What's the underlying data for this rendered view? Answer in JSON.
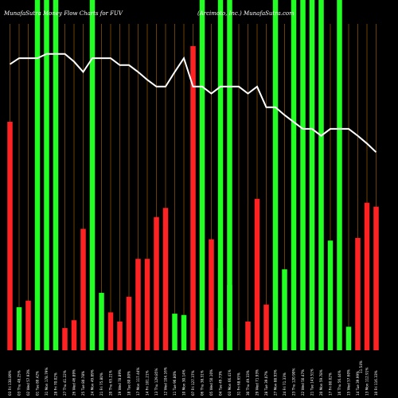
{
  "chart_data": {
    "type": "bar",
    "title_left": "MunafaSutra Money Flow Charts for FUV",
    "title_right": "(Arcimoto, Inc.) MunafaSutra.com",
    "colors": {
      "background": "#000000",
      "up_bar": "#ff2222",
      "down_bar": "#22ff22",
      "highlight": "#22ff22",
      "price_line": "#ffffff",
      "grid": "#b36b00"
    },
    "categories": [
      "03 Fri 138.89%",
      "03 Thu 48.25%",
      "02 Wed 57.93%",
      "01 Tue 80.42%",
      "31 Mon 178.79%",
      "28 Fri 70.02%",
      "27 Thu 41.22%",
      "26 Wed 46.89%",
      "25 Tue 80.78%",
      "24 Mon 49.89%",
      "21 Fri 75.80%",
      "20 Thu 65.21%",
      "19 Wed 78.89%",
      "18 Tue 80.00%",
      "17 Mon 117.44%",
      "14 Fri 101.21%",
      "13 Thu 129.85%",
      "12 Wed 104.16%",
      "11 Tue 96.80%",
      "10 Mon 30.14%",
      "07 Fri 127.37%",
      "06 Thu 38.31%",
      "05 Wed 50.10%",
      "04 Tue 49.73%",
      "03 Mon 66.41%",
      "31 Fri 68.65%",
      "30 Thu 49.33%",
      "29 Wed 71.93%",
      "28 Tue 39.07%",
      "27 Mon 88.93%",
      "24 Fri 71.33%",
      "23 Thu 120.90%",
      "22 Wed 50.47%",
      "21 Tue 143.51%",
      "20 Mon 59.78%",
      "17 Fri 80.02%",
      "16 Thu 56.44%",
      "15 Wed 57.60%",
      "14 Tue 39.99%",
      "13 Mon 112.91%",
      "10 Fri 116.33%"
    ],
    "last_label_extra": "11.54%",
    "values": [
      175,
      33,
      38,
      0,
      0,
      0,
      17,
      23,
      93,
      0,
      44,
      29,
      22,
      41,
      70,
      70,
      102,
      109,
      28,
      27,
      233,
      0,
      85,
      17,
      50,
      0,
      22,
      116,
      35,
      0,
      62,
      0,
      0,
      0,
      0,
      84,
      0,
      18,
      86,
      113,
      110
    ],
    "direction": [
      "up",
      "down",
      "up",
      "down",
      "down",
      "down",
      "up",
      "up",
      "up",
      "down",
      "down",
      "up",
      "up",
      "up",
      "up",
      "up",
      "up",
      "up",
      "down",
      "down",
      "up",
      "down",
      "up",
      "down",
      "down",
      "down",
      "up",
      "up",
      "up",
      "down",
      "down",
      "down",
      "down",
      "down",
      "down",
      "down",
      "down",
      "down",
      "up",
      "up",
      "up"
    ],
    "highlight": [
      false,
      false,
      false,
      true,
      true,
      true,
      false,
      false,
      false,
      true,
      false,
      false,
      false,
      false,
      false,
      false,
      false,
      false,
      false,
      false,
      false,
      true,
      false,
      true,
      true,
      false,
      false,
      false,
      false,
      true,
      false,
      true,
      true,
      true,
      true,
      false,
      true,
      false,
      false,
      false,
      false
    ],
    "price_line": [
      100,
      107,
      107,
      107,
      112,
      112,
      112,
      103,
      91,
      107,
      107,
      107,
      99,
      99,
      91,
      82,
      74,
      74,
      91,
      107,
      74,
      74,
      66,
      74,
      74,
      74,
      66,
      74,
      50,
      50,
      41,
      33,
      25,
      25,
      17,
      25,
      25,
      25,
      17,
      8,
      -2
    ],
    "ylim": [
      0,
      250
    ],
    "price_ylim": [
      0,
      120
    ],
    "grid": true
  }
}
